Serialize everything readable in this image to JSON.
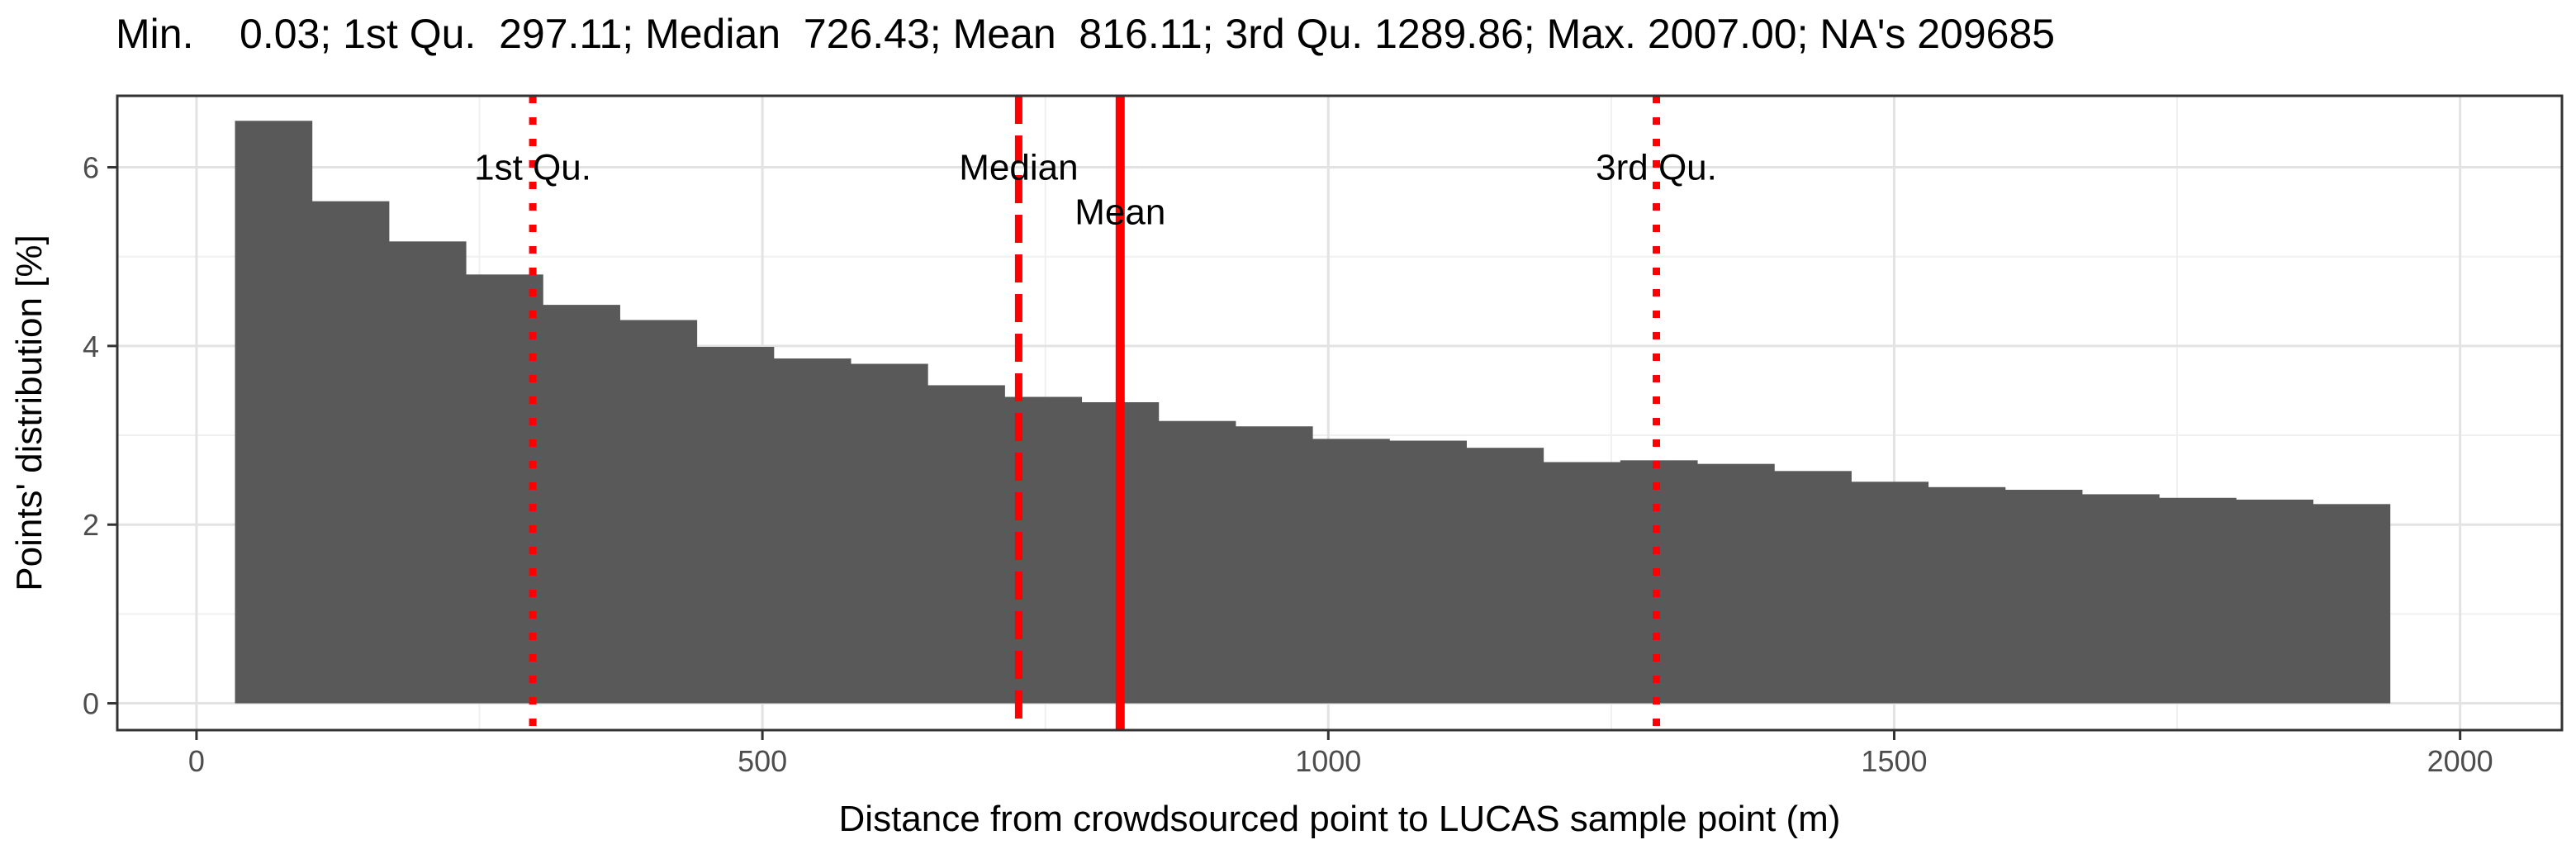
{
  "chart_data": {
    "type": "bar",
    "title": "Min.    0.03; 1st Qu.  297.11; Median  726.43; Mean  816.11; 3rd Qu. 1289.86; Max. 2007.00; NA's 209685",
    "xlabel": "Distance from crowdsourced point to LUCAS sample point (m)",
    "ylabel": "Points' distribution [%]",
    "xlim": [
      -70,
      2090
    ],
    "ylim": [
      -0.3,
      6.8
    ],
    "x_ticks": [
      0,
      500,
      1000,
      1500,
      2000
    ],
    "x_tick_labels": [
      "0",
      "500",
      "1000",
      "1500",
      "2000"
    ],
    "y_ticks": [
      0,
      2,
      4,
      6
    ],
    "y_tick_labels": [
      "0",
      "2",
      "4",
      "6"
    ],
    "grid": true,
    "bin_width": 68,
    "bin_start": 34,
    "values": [
      6.52,
      5.62,
      5.17,
      4.8,
      4.46,
      4.29,
      3.99,
      3.86,
      3.8,
      3.56,
      3.43,
      3.37,
      3.16,
      3.1,
      2.96,
      2.94,
      2.86,
      2.7,
      2.72,
      2.68,
      2.6,
      2.48,
      2.42,
      2.39,
      2.34,
      2.3,
      2.28,
      2.23
    ],
    "bar_color": "#595959",
    "vlines": [
      {
        "label": "1st Qu.",
        "x": 297.11,
        "style": "dotted",
        "label_y": 6.0
      },
      {
        "label": "Median",
        "x": 726.43,
        "style": "dashed",
        "label_y": 6.0
      },
      {
        "label": "Mean",
        "x": 816.11,
        "style": "solid",
        "label_y": 5.5
      },
      {
        "label": "3rd Qu.",
        "x": 1289.86,
        "style": "dotted",
        "label_y": 6.0
      }
    ],
    "line_color": "#ff0000"
  }
}
